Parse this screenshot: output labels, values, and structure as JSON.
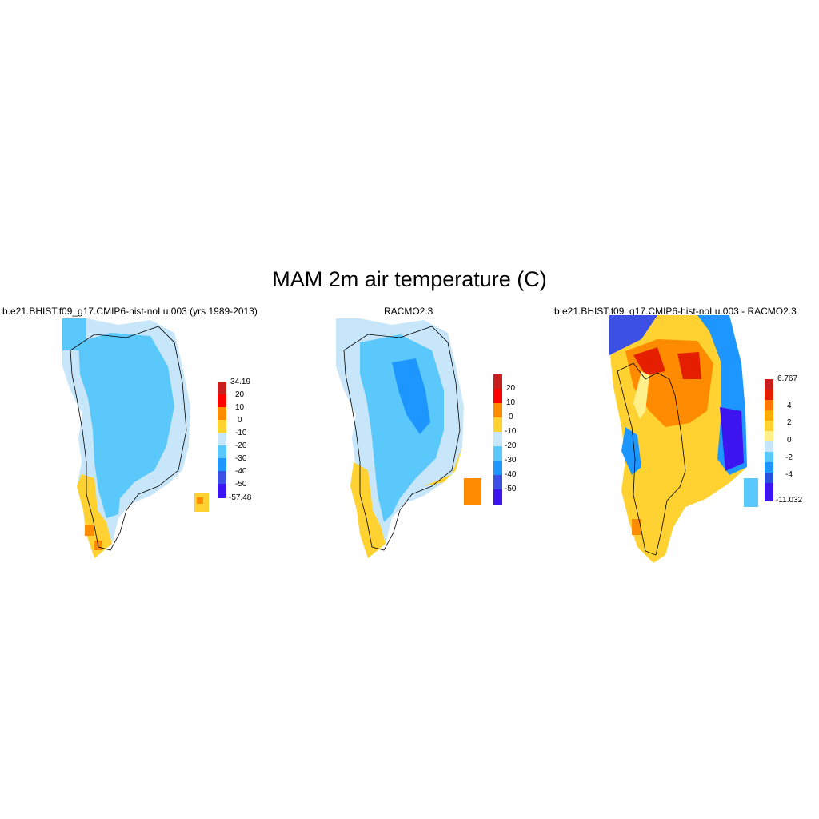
{
  "title": "MAM 2m air temperature (C)",
  "panels": [
    {
      "title": "b.e21.BHIST.f09_g17.CMIP6-hist-noLu.003 (yrs 1989-2013)",
      "colorbar": {
        "colors": [
          "#3c14f0",
          "#3c50e6",
          "#1e96ff",
          "#5ac8fa",
          "#c8e6fa",
          "#ffd232",
          "#ff8c00",
          "#ff0000",
          "#c81e1e"
        ],
        "labels": [
          "34.19",
          "20",
          "10",
          "0",
          "-10",
          "-20",
          "-30",
          "-40",
          "-50",
          "-57.48"
        ]
      }
    },
    {
      "title": "RACMO2.3",
      "colorbar": {
        "colors": [
          "#3c14f0",
          "#3c50e6",
          "#1e96ff",
          "#5ac8fa",
          "#c8e6fa",
          "#ffd232",
          "#ff8c00",
          "#ff0000",
          "#c81e1e"
        ],
        "labels": [
          "20",
          "10",
          "0",
          "-10",
          "-20",
          "-30",
          "-40",
          "-50"
        ]
      }
    },
    {
      "title": "b.e21.BHIST.f09_g17.CMIP6-hist-noLu.003 - RACMO2.3",
      "colorbar": {
        "colors": [
          "#3c14f0",
          "#2850dc",
          "#1e96ff",
          "#5ac8fa",
          "#c8e6fa",
          "#fff08c",
          "#ffd232",
          "#ffaa00",
          "#ff7800",
          "#e61e00",
          "#c81e1e"
        ],
        "labels": [
          "6.767",
          "4",
          "2",
          "0",
          "-2",
          "-4",
          "-11.032"
        ]
      }
    }
  ]
}
